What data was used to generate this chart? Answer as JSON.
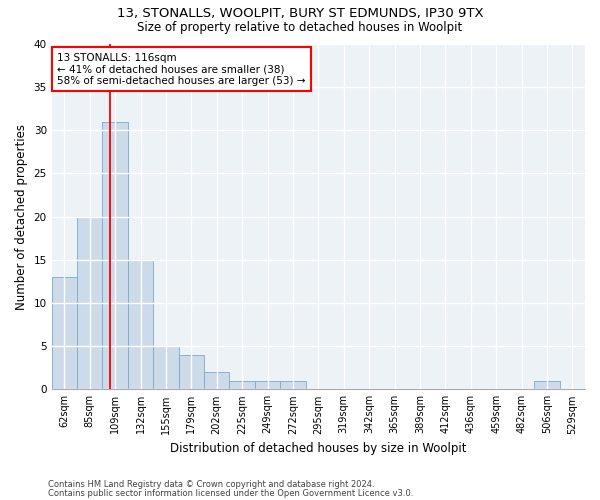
{
  "title_line1": "13, STONALLS, WOOLPIT, BURY ST EDMUNDS, IP30 9TX",
  "title_line2": "Size of property relative to detached houses in Woolpit",
  "xlabel": "Distribution of detached houses by size in Woolpit",
  "ylabel": "Number of detached properties",
  "footer_line1": "Contains HM Land Registry data © Crown copyright and database right 2024.",
  "footer_line2": "Contains public sector information licensed under the Open Government Licence v3.0.",
  "bin_labels": [
    "62sqm",
    "85sqm",
    "109sqm",
    "132sqm",
    "155sqm",
    "179sqm",
    "202sqm",
    "225sqm",
    "249sqm",
    "272sqm",
    "295sqm",
    "319sqm",
    "342sqm",
    "365sqm",
    "389sqm",
    "412sqm",
    "436sqm",
    "459sqm",
    "482sqm",
    "506sqm",
    "529sqm"
  ],
  "bar_values": [
    13,
    20,
    31,
    15,
    5,
    4,
    2,
    1,
    1,
    1,
    0,
    0,
    0,
    0,
    0,
    0,
    0,
    0,
    0,
    1,
    0
  ],
  "bar_color": "#ccdaea",
  "bar_edge_color": "#7aaac8",
  "annotation_text": "13 STONALLS: 116sqm\n← 41% of detached houses are smaller (38)\n58% of semi-detached houses are larger (53) →",
  "annotation_box_color": "white",
  "annotation_box_edge_color": "red",
  "ylim": [
    0,
    40
  ],
  "yticks": [
    0,
    5,
    10,
    15,
    20,
    25,
    30,
    35,
    40
  ],
  "bg_color": "#edf2f7",
  "grid_color": "white",
  "title_fontsize": 9.5,
  "subtitle_fontsize": 8.5,
  "axis_label_fontsize": 8.5,
  "tick_fontsize": 7,
  "footer_fontsize": 6
}
